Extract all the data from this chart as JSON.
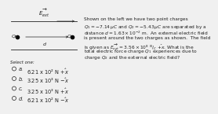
{
  "bg_color": "#f0f0f0",
  "text_color": "#222222",
  "diagram": {
    "eext_label": "$\\overrightarrow{E_{ext}}$",
    "q1_label": "$Q_1$",
    "q2_label": "$Q_2$",
    "d_label": "$d$"
  },
  "text_lines": [
    "Shown on the left we have two point charges",
    "$Q_1 = -7.14\\,\\mu C$ and $Q_2 = -5.43\\,\\mu C$ are separated by a",
    "distance $d = 1.63 \\times 10^{-2}$ m.  An external electric field",
    "is present around the two charges as shown.  The field",
    "is given as $\\overrightarrow{E_{ext}} = 3.56 \\times 10^{8}$ $^{N}/_{C}$ $\\hat{+x}$. What is the",
    "total electric force charge $Q_1$ experiences due to",
    "charge $Q_2$ and the external electric field?"
  ],
  "select_label": "Select one:",
  "options": [
    [
      "a.",
      "6.21 x 10² N $\\hat{+x}$"
    ],
    [
      "b.",
      "3.25 x 10³ N $\\hat{-x}$"
    ],
    [
      "c.",
      "3.25 x 10³ N $\\hat{+x}$"
    ],
    [
      "d.",
      "6.21 x 10² N $\\hat{-x}$"
    ]
  ],
  "fs_text": 4.2,
  "fs_opts": 4.8,
  "fs_select": 4.0,
  "fs_diagram": 4.5
}
